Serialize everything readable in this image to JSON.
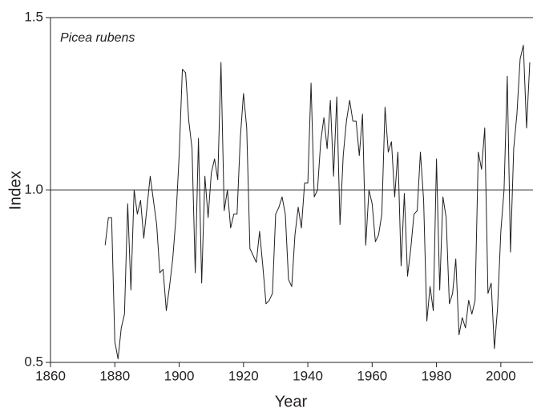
{
  "chart_data": {
    "type": "line",
    "annotation": "Picea rubens",
    "x_label": "Year",
    "y_label": "Index",
    "xlim": [
      1860,
      2010
    ],
    "ylim": [
      0.5,
      1.5
    ],
    "xticks": [
      1860,
      1880,
      1900,
      1920,
      1940,
      1960,
      1980,
      2000
    ],
    "yticks": [
      0.5,
      {
        "value": 1.0,
        "label": "1.0"
      },
      1.5
    ],
    "reference_line": 1.0,
    "color": "#231f20",
    "x": [
      1877,
      1878,
      1879,
      1880,
      1881,
      1882,
      1883,
      1884,
      1885,
      1886,
      1887,
      1888,
      1889,
      1890,
      1891,
      1892,
      1893,
      1894,
      1895,
      1896,
      1897,
      1898,
      1899,
      1900,
      1901,
      1902,
      1903,
      1904,
      1905,
      1906,
      1907,
      1908,
      1909,
      1910,
      1911,
      1912,
      1913,
      1914,
      1915,
      1916,
      1917,
      1918,
      1919,
      1920,
      1921,
      1922,
      1923,
      1924,
      1925,
      1926,
      1927,
      1928,
      1929,
      1930,
      1931,
      1932,
      1933,
      1934,
      1935,
      1936,
      1937,
      1938,
      1939,
      1940,
      1941,
      1942,
      1943,
      1944,
      1945,
      1946,
      1947,
      1948,
      1949,
      1950,
      1951,
      1952,
      1953,
      1954,
      1955,
      1956,
      1957,
      1958,
      1959,
      1960,
      1961,
      1962,
      1963,
      1964,
      1965,
      1966,
      1967,
      1968,
      1969,
      1970,
      1971,
      1972,
      1973,
      1974,
      1975,
      1976,
      1977,
      1978,
      1979,
      1980,
      1981,
      1982,
      1983,
      1984,
      1985,
      1986,
      1987,
      1988,
      1989,
      1990,
      1991,
      1992,
      1993,
      1994,
      1995,
      1996,
      1997,
      1998,
      1999,
      2000,
      2001,
      2002,
      2003,
      2004,
      2005,
      2006,
      2007,
      2008,
      2009
    ],
    "values": [
      0.84,
      0.92,
      0.92,
      0.56,
      0.51,
      0.6,
      0.64,
      0.96,
      0.71,
      1.0,
      0.93,
      0.97,
      0.86,
      0.95,
      1.04,
      0.97,
      0.9,
      0.76,
      0.77,
      0.65,
      0.72,
      0.8,
      0.92,
      1.1,
      1.35,
      1.34,
      1.2,
      1.12,
      0.76,
      1.15,
      0.73,
      1.04,
      0.92,
      1.05,
      1.09,
      1.03,
      1.37,
      0.94,
      1.0,
      0.89,
      0.93,
      0.93,
      1.15,
      1.28,
      1.18,
      0.83,
      0.81,
      0.79,
      0.88,
      0.78,
      0.67,
      0.68,
      0.7,
      0.93,
      0.95,
      0.98,
      0.93,
      0.74,
      0.72,
      0.87,
      0.95,
      0.89,
      1.02,
      1.02,
      1.31,
      0.98,
      1.0,
      1.14,
      1.21,
      1.12,
      1.26,
      1.04,
      1.27,
      0.9,
      1.1,
      1.2,
      1.26,
      1.2,
      1.2,
      1.1,
      1.22,
      0.84,
      1.0,
      0.96,
      0.85,
      0.87,
      0.93,
      1.24,
      1.11,
      1.14,
      0.98,
      1.11,
      0.78,
      0.99,
      0.75,
      0.83,
      0.93,
      0.94,
      1.11,
      0.97,
      0.62,
      0.72,
      0.65,
      1.09,
      0.71,
      0.98,
      0.92,
      0.67,
      0.7,
      0.8,
      0.58,
      0.63,
      0.6,
      0.68,
      0.64,
      0.68,
      1.11,
      1.06,
      1.18,
      0.7,
      0.73,
      0.54,
      0.66,
      0.88,
      1.0,
      1.33,
      0.82,
      1.12,
      1.22,
      1.38,
      1.42,
      1.18,
      1.37
    ]
  }
}
